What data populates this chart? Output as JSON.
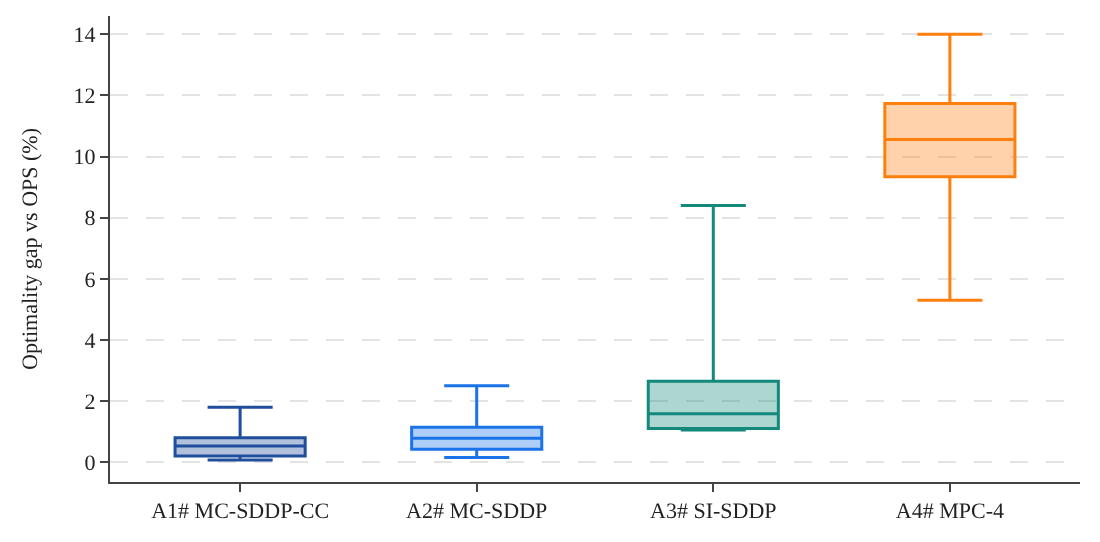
{
  "chart_data": {
    "type": "box",
    "ylabel": "Optimality gap vs OPS (%)",
    "categories": [
      "A1# MC-SDDP-CC",
      "A2# MC-SDDP",
      "A3# SI-SDDP",
      "A4# MPC-4"
    ],
    "series": [
      {
        "color": "#1f4e9c",
        "boxes": [
          {
            "low": 0.07,
            "q1": 0.2,
            "median": 0.53,
            "q3": 0.8,
            "high": 1.8
          },
          null,
          null,
          null
        ]
      },
      {
        "color": "#1a73e8",
        "boxes": [
          null,
          {
            "low": 0.15,
            "q1": 0.42,
            "median": 0.78,
            "q3": 1.14,
            "high": 2.5
          },
          null,
          null
        ]
      },
      {
        "color": "#13897c",
        "boxes": [
          null,
          null,
          {
            "low": 1.05,
            "q1": 1.1,
            "median": 1.58,
            "q3": 2.65,
            "high": 8.4
          },
          null
        ]
      },
      {
        "color": "#ff7f0e",
        "boxes": [
          null,
          null,
          null,
          {
            "low": 5.3,
            "q1": 9.34,
            "median": 10.56,
            "q3": 11.74,
            "high": 14.0
          }
        ]
      }
    ],
    "ylim": [
      -0.65,
      14.6
    ],
    "yticks": [
      0,
      2,
      4,
      6,
      8,
      10,
      12,
      14
    ],
    "grid": "y"
  }
}
